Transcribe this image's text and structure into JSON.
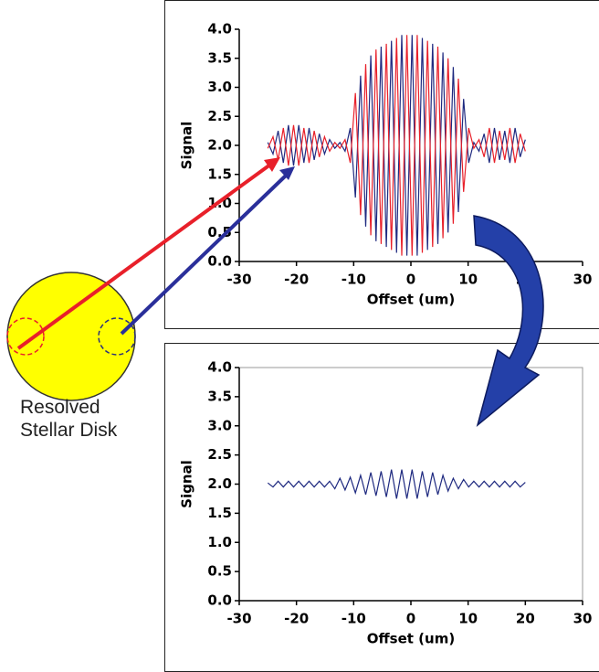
{
  "chart_data": [
    {
      "type": "line",
      "xlabel": "Offset (um)",
      "ylabel": "Signal",
      "x": [
        -25,
        -24.1,
        -23.2,
        -22.3,
        -21.4,
        -20.5,
        -19.6,
        -18.7,
        -17.8,
        -16.9,
        -16,
        -15.1,
        -14.2,
        -13.3,
        -12.4,
        -11.5,
        -10.6,
        -9.7,
        -8.8,
        -7.9,
        -7,
        -6.1,
        -5.2,
        -4.3,
        -3.4,
        -2.5,
        -1.6,
        -0.7,
        0.2,
        1.1,
        2,
        2.9,
        3.8,
        4.7,
        5.6,
        6.5,
        7.4,
        8.3,
        9.2,
        10.1,
        11,
        11.9,
        12.8,
        13.7,
        14.6,
        15.5,
        16.4,
        17.3,
        18.2,
        19.1,
        20
      ],
      "series": [
        {
          "color": "#1f2a80",
          "values": [
            2.05,
            1.85,
            2.25,
            1.7,
            2.35,
            1.65,
            2.35,
            1.7,
            2.3,
            1.75,
            2.2,
            1.85,
            2.1,
            1.95,
            2.05,
            1.9,
            2.3,
            1.1,
            3.2,
            0.6,
            3.55,
            0.35,
            3.7,
            0.25,
            3.8,
            0.15,
            3.9,
            0.1,
            3.9,
            0.1,
            3.85,
            0.2,
            3.75,
            0.3,
            3.6,
            0.5,
            3.35,
            0.85,
            2.8,
            1.7,
            2.05,
            1.9,
            2.2,
            1.7,
            2.3,
            1.75,
            2.25,
            1.7,
            2.3,
            1.8,
            2.1
          ]
        },
        {
          "color": "#e8202a",
          "values": [
            1.95,
            2.15,
            1.75,
            2.3,
            1.65,
            2.35,
            1.65,
            2.3,
            1.7,
            2.25,
            1.8,
            2.15,
            1.9,
            2.05,
            1.95,
            2.1,
            1.7,
            2.9,
            0.8,
            3.4,
            0.45,
            3.65,
            0.3,
            3.75,
            0.2,
            3.85,
            0.1,
            3.9,
            0.1,
            3.9,
            0.15,
            3.8,
            0.25,
            3.7,
            0.4,
            3.5,
            0.65,
            3.15,
            1.2,
            2.3,
            1.95,
            2.1,
            1.8,
            2.3,
            1.7,
            2.25,
            1.75,
            2.3,
            1.7,
            2.2,
            1.9
          ]
        }
      ],
      "xlim": [
        -30,
        30
      ],
      "xticks": [
        -30,
        -20,
        -10,
        0,
        10,
        20,
        30
      ],
      "ylim": [
        0,
        4
      ],
      "yticks": [
        {
          "value": 0,
          "label": "0.0"
        },
        {
          "value": 0.5,
          "label": "0.5"
        },
        {
          "value": 1,
          "label": "1.0"
        },
        {
          "value": 1.5,
          "label": "1.5"
        },
        {
          "value": 2,
          "label": "2.0"
        },
        {
          "value": 2.5,
          "label": "2.5"
        },
        {
          "value": 3,
          "label": "3.0"
        },
        {
          "value": 3.5,
          "label": "3.5"
        },
        {
          "value": 4,
          "label": "4.0"
        }
      ],
      "plot_border": false
    },
    {
      "type": "line",
      "xlabel": "Offset (um)",
      "ylabel": "Signal",
      "x": [
        -25,
        -24.1,
        -23.2,
        -22.3,
        -21.4,
        -20.5,
        -19.6,
        -18.7,
        -17.8,
        -16.9,
        -16,
        -15.1,
        -14.2,
        -13.3,
        -12.4,
        -11.5,
        -10.6,
        -9.7,
        -8.8,
        -7.9,
        -7,
        -6.1,
        -5.2,
        -4.3,
        -3.4,
        -2.5,
        -1.6,
        -0.7,
        0.2,
        1.1,
        2,
        2.9,
        3.8,
        4.7,
        5.6,
        6.5,
        7.4,
        8.3,
        9.2,
        10.1,
        11,
        11.9,
        12.8,
        13.7,
        14.6,
        15.5,
        16.4,
        17.3,
        18.2,
        19.1,
        20
      ],
      "series": [
        {
          "color": "#1f2a80",
          "values": [
            2.02,
            1.95,
            2.05,
            1.95,
            2.05,
            1.95,
            2.05,
            1.95,
            2.05,
            1.95,
            2.05,
            1.95,
            2.05,
            1.92,
            2.1,
            1.9,
            2.12,
            1.85,
            2.15,
            1.82,
            2.2,
            1.8,
            2.22,
            1.78,
            2.25,
            1.75,
            2.25,
            1.75,
            2.25,
            1.75,
            2.22,
            1.78,
            2.2,
            1.82,
            2.15,
            1.88,
            2.1,
            1.92,
            2.08,
            1.95,
            2.05,
            1.95,
            2.05,
            1.95,
            2.05,
            1.95,
            2.05,
            1.95,
            2.05,
            1.95,
            2.03
          ]
        }
      ],
      "xlim": [
        -30,
        30
      ],
      "xticks": [
        -30,
        -20,
        -10,
        0,
        10,
        20,
        30
      ],
      "ylim": [
        0,
        4
      ],
      "yticks": [
        {
          "value": 0,
          "label": "0.0"
        },
        {
          "value": 0.5,
          "label": "0.5"
        },
        {
          "value": 1,
          "label": "1.0"
        },
        {
          "value": 1.5,
          "label": "1.5"
        },
        {
          "value": 2,
          "label": "2.0"
        },
        {
          "value": 2.5,
          "label": "2.5"
        },
        {
          "value": 3,
          "label": "3.0"
        },
        {
          "value": 3.5,
          "label": "3.5"
        },
        {
          "value": 4,
          "label": "4.0"
        }
      ],
      "plot_border": true
    }
  ],
  "caption": [
    "Resolved",
    "Stellar Disk"
  ]
}
